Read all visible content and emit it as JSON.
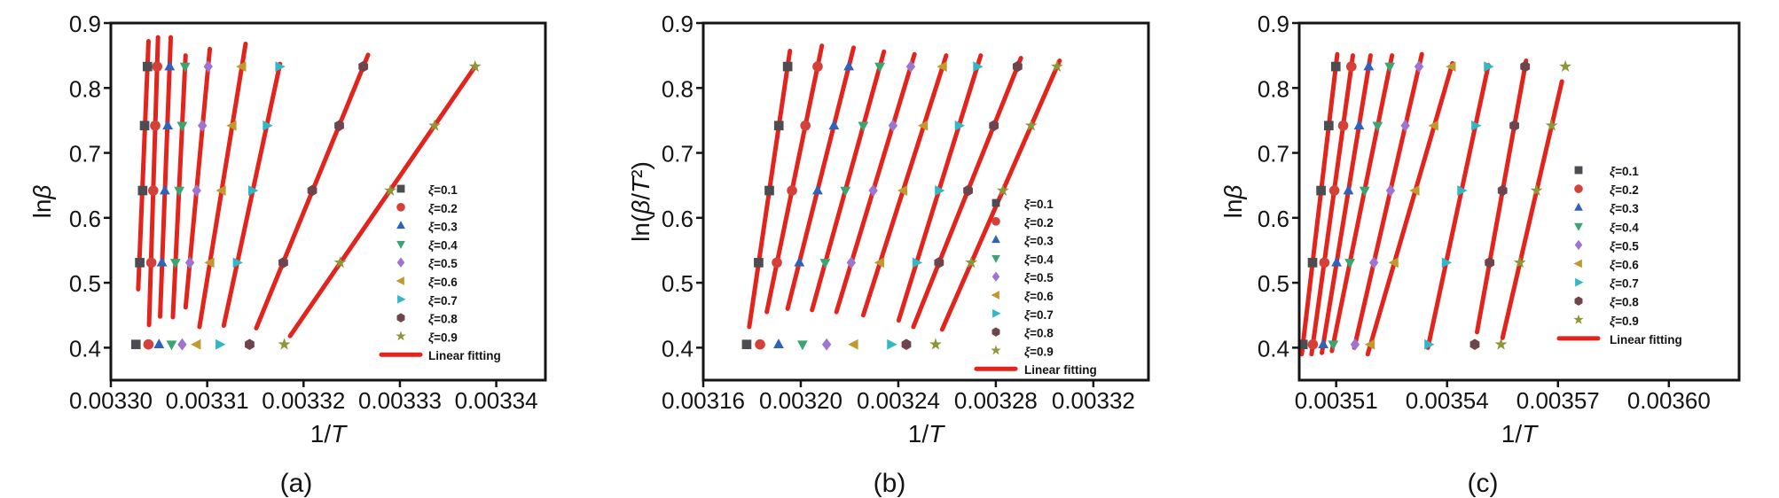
{
  "figure": {
    "background": "#ffffff",
    "frame_color": "#141414",
    "text_color": "#141414",
    "fit_color": "#e2241c",
    "fit_label": "Linear fitting"
  },
  "chart_data": [
    {
      "id": "a",
      "type": "scatter",
      "caption": "(a)",
      "xlabel": "1/T",
      "ylabel": "lnβ",
      "xlim": [
        0.0033,
        0.0033451
      ],
      "ylim": [
        0.35,
        0.9
      ],
      "xticks": [
        0.0033,
        0.00331,
        0.00332,
        0.00333,
        0.00334
      ],
      "xtick_labels": [
        "0.00330",
        "0.00331",
        "0.00332",
        "0.00333",
        "0.00334"
      ],
      "yticks": [
        0.4,
        0.5,
        0.6,
        0.7,
        0.8,
        0.9
      ],
      "ytick_labels": [
        "0.4",
        "0.5",
        "0.6",
        "0.7",
        "0.8",
        "0.9"
      ],
      "grid": false,
      "legend_position": "inside-right",
      "y_values": [
        0.405,
        0.531,
        0.642,
        0.742,
        0.833
      ],
      "series": [
        {
          "label": "ξ=0.1",
          "marker": "square",
          "color": "#4c4c53",
          "x": [
            0.0033026,
            0.003303,
            0.0033033,
            0.0033035,
            0.0033038
          ],
          "fit_y_range": [
            0.49,
            0.872
          ]
        },
        {
          "label": "ξ=0.2",
          "marker": "circle",
          "color": "#d4403a",
          "x": [
            0.0033039,
            0.0033042,
            0.0033044,
            0.0033046,
            0.0033048
          ],
          "fit_y_range": [
            0.435,
            0.878
          ]
        },
        {
          "label": "ξ=0.3",
          "marker": "triangle-up",
          "color": "#2f62b8",
          "x": [
            0.003305,
            0.0033053,
            0.0033056,
            0.0033059,
            0.0033061
          ],
          "fit_y_range": [
            0.448,
            0.878
          ]
        },
        {
          "label": "ξ=0.4",
          "marker": "triangle-down",
          "color": "#3aa571",
          "x": [
            0.0033063,
            0.0033067,
            0.0033071,
            0.0033074,
            0.0033077
          ],
          "fit_y_range": [
            0.447,
            0.85
          ]
        },
        {
          "label": "ξ=0.5",
          "marker": "diamond",
          "color": "#9e74d0",
          "x": [
            0.0033074,
            0.0033082,
            0.0033089,
            0.0033095,
            0.0033101
          ],
          "fit_y_range": [
            0.462,
            0.86
          ]
        },
        {
          "label": "ξ=0.6",
          "marker": "triangle-left",
          "color": "#c0992f",
          "x": [
            0.0033089,
            0.0033103,
            0.0033115,
            0.0033126,
            0.0033136
          ],
          "fit_y_range": [
            0.432,
            0.868
          ]
        },
        {
          "label": "ξ=0.7",
          "marker": "triangle-right",
          "color": "#31b7c6",
          "x": [
            0.0033113,
            0.0033131,
            0.0033147,
            0.0033162,
            0.0033175
          ],
          "fit_y_range": [
            0.434,
            0.837
          ]
        },
        {
          "label": "ξ=0.8",
          "marker": "hexagon",
          "color": "#6e454c",
          "x": [
            0.0033144,
            0.0033179,
            0.0033209,
            0.0033237,
            0.0033262
          ],
          "fit_y_range": [
            0.43,
            0.851
          ]
        },
        {
          "label": "ξ=0.9",
          "marker": "star",
          "color": "#8e9638",
          "x": [
            0.003318,
            0.0033238,
            0.003329,
            0.0033336,
            0.0033378
          ],
          "fit_y_range": [
            0.418,
            0.834
          ]
        }
      ]
    },
    {
      "id": "b",
      "type": "scatter",
      "caption": "(b)",
      "xlabel": "1/T",
      "ylabel": "ln(β/T²)",
      "xlim": [
        0.00316,
        0.0033426
      ],
      "ylim": [
        0.35,
        0.9
      ],
      "xticks": [
        0.00316,
        0.0032,
        0.00324,
        0.00328,
        0.00332
      ],
      "xtick_labels": [
        "0.00316",
        "0.00320",
        "0.00324",
        "0.00328",
        "0.00332"
      ],
      "yticks": [
        0.4,
        0.5,
        0.6,
        0.7,
        0.8,
        0.9
      ],
      "ytick_labels": [
        "0.4",
        "0.5",
        "0.6",
        "0.7",
        "0.8",
        "0.9"
      ],
      "grid": false,
      "legend_position": "inside-right",
      "y_values": [
        0.405,
        0.531,
        0.642,
        0.742,
        0.833
      ],
      "series": [
        {
          "label": "ξ=0.1",
          "marker": "square",
          "color": "#4c4c53",
          "x": [
            0.0031778,
            0.0031827,
            0.0031871,
            0.003191,
            0.0031946
          ],
          "fit_y_range": [
            0.432,
            0.857
          ]
        },
        {
          "label": "ξ=0.2",
          "marker": "circle",
          "color": "#d4403a",
          "x": [
            0.0031833,
            0.0031902,
            0.0031964,
            0.0032019,
            0.0032069
          ],
          "fit_y_range": [
            0.455,
            0.865
          ]
        },
        {
          "label": "ξ=0.3",
          "marker": "triangle-up",
          "color": "#2f62b8",
          "x": [
            0.0031909,
            0.0031994,
            0.0032069,
            0.0032136,
            0.0032197
          ],
          "fit_y_range": [
            0.46,
            0.862
          ]
        },
        {
          "label": "ξ=0.4",
          "marker": "triangle-down",
          "color": "#3aa571",
          "x": [
            0.0032007,
            0.00321,
            0.0032183,
            0.0032256,
            0.0032324
          ],
          "fit_y_range": [
            0.458,
            0.856
          ]
        },
        {
          "label": "ξ=0.5",
          "marker": "diamond",
          "color": "#9e74d0",
          "x": [
            0.0032106,
            0.0032207,
            0.0032297,
            0.0032378,
            0.0032451
          ],
          "fit_y_range": [
            0.455,
            0.852
          ]
        },
        {
          "label": "ξ=0.6",
          "marker": "triangle-left",
          "color": "#c0992f",
          "x": [
            0.0032218,
            0.0032325,
            0.003242,
            0.0032504,
            0.0032582
          ],
          "fit_y_range": [
            0.45,
            0.85
          ]
        },
        {
          "label": "ξ=0.7",
          "marker": "triangle-right",
          "color": "#31b7c6",
          "x": [
            0.0032371,
            0.0032475,
            0.0032567,
            0.0032649,
            0.0032724
          ],
          "fit_y_range": [
            0.442,
            0.85
          ]
        },
        {
          "label": "ξ=0.8",
          "marker": "hexagon",
          "color": "#6e454c",
          "x": [
            0.0032433,
            0.0032567,
            0.0032686,
            0.0032792,
            0.0032889
          ],
          "fit_y_range": [
            0.432,
            0.846
          ]
        },
        {
          "label": "ξ=0.9",
          "marker": "star",
          "color": "#8e9638",
          "x": [
            0.0032553,
            0.0032699,
            0.0032829,
            0.0032945,
            0.0033051
          ],
          "fit_y_range": [
            0.428,
            0.842
          ]
        }
      ]
    },
    {
      "id": "c",
      "type": "scatter",
      "caption": "(c)",
      "xlabel": "1/T",
      "ylabel": "lnβ",
      "xlim": [
        0.0035,
        0.003619
      ],
      "ylim": [
        0.35,
        0.9
      ],
      "xticks": [
        0.00351,
        0.00354,
        0.00357,
        0.0036
      ],
      "xtick_labels": [
        "0.00351",
        "0.00354",
        "0.00357",
        "0.00360"
      ],
      "yticks": [
        0.4,
        0.5,
        0.6,
        0.7,
        0.8,
        0.9
      ],
      "ytick_labels": [
        "0.4",
        "0.5",
        "0.6",
        "0.7",
        "0.8",
        "0.9"
      ],
      "grid": false,
      "legend_position": "inside-right",
      "y_values": [
        0.405,
        0.531,
        0.642,
        0.742,
        0.833
      ],
      "series": [
        {
          "label": "ξ=0.1",
          "marker": "square",
          "color": "#4c4c53",
          "x": [
            0.003501,
            0.0035036,
            0.0035059,
            0.003508,
            0.0035099
          ],
          "fit_y_range": [
            0.39,
            0.852
          ]
        },
        {
          "label": "ξ=0.2",
          "marker": "circle",
          "color": "#d4403a",
          "x": [
            0.0035037,
            0.0035068,
            0.0035095,
            0.0035119,
            0.0035141
          ],
          "fit_y_range": [
            0.39,
            0.85
          ]
        },
        {
          "label": "ξ=0.3",
          "marker": "triangle-up",
          "color": "#2f62b8",
          "x": [
            0.0035065,
            0.0035101,
            0.0035133,
            0.0035162,
            0.0035188
          ],
          "fit_y_range": [
            0.392,
            0.85
          ]
        },
        {
          "label": "ξ=0.4",
          "marker": "triangle-down",
          "color": "#3aa571",
          "x": [
            0.0035092,
            0.0035137,
            0.0035177,
            0.0035212,
            0.0035245
          ],
          "fit_y_range": [
            0.395,
            0.85
          ]
        },
        {
          "label": "ξ=0.5",
          "marker": "diamond",
          "color": "#9e74d0",
          "x": [
            0.0035151,
            0.0035202,
            0.0035247,
            0.0035287,
            0.0035324
          ],
          "fit_y_range": [
            0.4,
            0.852
          ]
        },
        {
          "label": "ξ=0.6",
          "marker": "triangle-left",
          "color": "#c0992f",
          "x": [
            0.0035193,
            0.0035257,
            0.0035314,
            0.0035365,
            0.0035412
          ],
          "fit_y_range": [
            0.39,
            0.838
          ]
        },
        {
          "label": "ξ=0.7",
          "marker": "triangle-right",
          "color": "#31b7c6",
          "x": [
            0.003535,
            0.0035397,
            0.0035439,
            0.0035477,
            0.0035511
          ],
          "fit_y_range": [
            0.4,
            0.835
          ]
        },
        {
          "label": "ξ=0.8",
          "marker": "hexagon",
          "color": "#6e454c",
          "x": [
            0.0035475,
            0.0035515,
            0.003555,
            0.0035582,
            0.0035611
          ],
          "fit_y_range": [
            0.424,
            0.842
          ]
        },
        {
          "label": "ξ=0.9",
          "marker": "star",
          "color": "#8e9638",
          "x": [
            0.0035546,
            0.0035597,
            0.0035642,
            0.0035683,
            0.003572
          ],
          "fit_y_range": [
            0.415,
            0.81
          ]
        }
      ]
    }
  ]
}
